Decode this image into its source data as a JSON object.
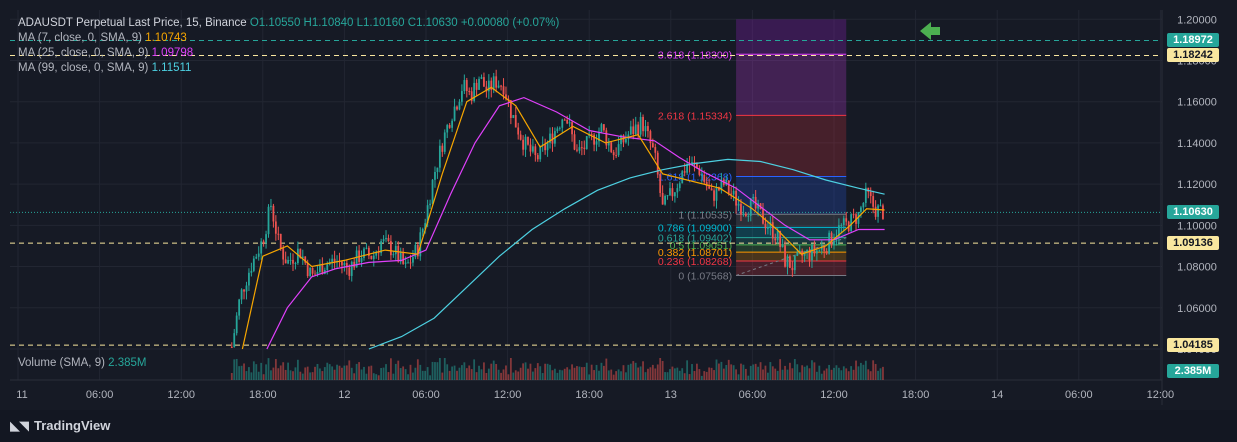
{
  "legend": {
    "title": "ADAUSDT Perpetual Last Price, 15, Binance",
    "ohlc": "O1.10550  H1.10840  L1.10160  C1.10630  +0.00080 (+0.07%)",
    "ma": [
      {
        "label": "MA (7, close, 0, SMA, 9)",
        "value": "1.10743",
        "color": "#f7a600"
      },
      {
        "label": "MA (25, close, 0, SMA, 9)",
        "value": "1.09798",
        "color": "#e040fb"
      },
      {
        "label": "MA (99, close, 0, SMA, 9)",
        "value": "1.11511",
        "color": "#4dd0e1"
      }
    ],
    "volume_label": "Volume (SMA, 9)",
    "volume_value": "2.385M"
  },
  "brand": {
    "name": "TradingView"
  },
  "price_tags": [
    {
      "text": "1.18972",
      "price": 1.18972,
      "bg": "#26a69a",
      "fg": "#ffffff"
    },
    {
      "text": "1.18242",
      "price": 1.18242,
      "bg": "#f9e79f",
      "fg": "#131722"
    },
    {
      "text": "1.10630",
      "price": 1.1063,
      "bg": "#26a69a",
      "fg": "#ffffff"
    },
    {
      "text": "1.09136",
      "price": 1.09136,
      "bg": "#f9e79f",
      "fg": "#131722"
    },
    {
      "text": "1.04185",
      "price": 1.04185,
      "bg": "#f9e79f",
      "fg": "#131722"
    }
  ],
  "volume_tag": {
    "text": "2.385M",
    "bg": "#26a69a",
    "fg": "#ffffff"
  },
  "colors": {
    "up": "#26a69a",
    "down": "#ef5350",
    "background": "#161a25",
    "grid": "#222632"
  },
  "chart_data": {
    "type": "candlestick",
    "symbol": "ADAUSDT Perpetual",
    "interval": "15",
    "exchange": "Binance",
    "y_axis": {
      "ticks": [
        "1.20000",
        "1.18000",
        "1.16000",
        "1.14000",
        "1.12000",
        "1.10000",
        "1.08000",
        "1.06000",
        "1.04000"
      ],
      "ylim": [
        1.0395,
        1.2045
      ]
    },
    "x_axis": {
      "ticks": [
        "11",
        "06:00",
        "12:00",
        "18:00",
        "12",
        "06:00",
        "12:00",
        "18:00",
        "13",
        "06:00",
        "12:00",
        "18:00",
        "14",
        "06:00",
        "12:00"
      ],
      "xlim": [
        0,
        14
      ]
    },
    "horizontal_lines": [
      {
        "price": 1.18972,
        "color": "#26a69a"
      },
      {
        "price": 1.18242,
        "color": "#f9e79f"
      },
      {
        "price": 1.09136,
        "color": "#f9e79f"
      },
      {
        "price": 1.04185,
        "color": "#f9e79f"
      }
    ],
    "last_price_line": {
      "price": 1.1063,
      "color": "#26a69a"
    },
    "fibonacci": {
      "range": [
        8.8,
        10.15
      ],
      "levels": [
        {
          "label": "3.618 (1.18300)",
          "price": 1.183,
          "color": "#e040fb"
        },
        {
          "label": "2.618 (1.15334)",
          "price": 1.15334,
          "color": "#f23645"
        },
        {
          "label": "1.618 (1.12368)",
          "price": 1.12368,
          "color": "#2962ff"
        },
        {
          "label": "1 (1.10535)",
          "price": 1.10535,
          "color": "#787b86"
        },
        {
          "label": "0.786 (1.09900)",
          "price": 1.099,
          "color": "#00bcd4"
        },
        {
          "label": "0.618 (1.09402)",
          "price": 1.09402,
          "color": "#26a69a"
        },
        {
          "label": "0.5 (1.09051)",
          "price": 1.09051,
          "color": "#4caf50"
        },
        {
          "label": "0.382 (1.08701)",
          "price": 1.08701,
          "color": "#ff9800"
        },
        {
          "label": "0.236 (1.08268)",
          "price": 1.08268,
          "color": "#f23645"
        },
        {
          "label": "0 (1.07568)",
          "price": 1.07568,
          "color": "#787b86"
        }
      ],
      "top_price": 1.2
    },
    "price_path": [
      [
        2.62,
        1.041
      ],
      [
        2.72,
        1.065
      ],
      [
        2.85,
        1.08
      ],
      [
        3.0,
        1.093
      ],
      [
        3.1,
        1.11
      ],
      [
        3.2,
        1.09
      ],
      [
        3.3,
        1.082
      ],
      [
        3.45,
        1.088
      ],
      [
        3.6,
        1.075
      ],
      [
        3.75,
        1.081
      ],
      [
        3.9,
        1.083
      ],
      [
        4.05,
        1.079
      ],
      [
        4.2,
        1.086
      ],
      [
        4.35,
        1.085
      ],
      [
        4.45,
        1.092
      ],
      [
        4.6,
        1.088
      ],
      [
        4.75,
        1.079
      ],
      [
        4.9,
        1.089
      ],
      [
        5.0,
        1.105
      ],
      [
        5.1,
        1.125
      ],
      [
        5.2,
        1.14
      ],
      [
        5.3,
        1.153
      ],
      [
        5.38,
        1.16
      ],
      [
        5.45,
        1.168
      ],
      [
        5.55,
        1.163
      ],
      [
        5.65,
        1.172
      ],
      [
        5.75,
        1.165
      ],
      [
        5.85,
        1.17
      ],
      [
        5.95,
        1.168
      ],
      [
        6.05,
        1.154
      ],
      [
        6.2,
        1.14
      ],
      [
        6.35,
        1.132
      ],
      [
        6.5,
        1.14
      ],
      [
        6.7,
        1.155
      ],
      [
        6.85,
        1.135
      ],
      [
        7.0,
        1.14
      ],
      [
        7.15,
        1.147
      ],
      [
        7.3,
        1.135
      ],
      [
        7.5,
        1.145
      ],
      [
        7.65,
        1.15
      ],
      [
        7.8,
        1.134
      ],
      [
        7.9,
        1.108
      ],
      [
        8.05,
        1.118
      ],
      [
        8.2,
        1.13
      ],
      [
        8.35,
        1.127
      ],
      [
        8.5,
        1.114
      ],
      [
        8.65,
        1.12
      ],
      [
        8.8,
        1.112
      ],
      [
        8.9,
        1.108
      ],
      [
        9.0,
        1.11
      ],
      [
        9.15,
        1.102
      ],
      [
        9.3,
        1.095
      ],
      [
        9.4,
        1.083
      ],
      [
        9.5,
        1.08
      ],
      [
        9.6,
        1.085
      ],
      [
        9.75,
        1.087
      ],
      [
        9.9,
        1.09
      ],
      [
        10.05,
        1.098
      ],
      [
        10.15,
        1.1
      ],
      [
        10.3,
        1.105
      ],
      [
        10.4,
        1.115
      ],
      [
        10.5,
        1.108
      ],
      [
        10.62,
        1.1063
      ]
    ],
    "ma_7": [
      [
        2.75,
        1.04
      ],
      [
        3.0,
        1.085
      ],
      [
        3.3,
        1.09
      ],
      [
        3.6,
        1.08
      ],
      [
        4.0,
        1.083
      ],
      [
        4.5,
        1.088
      ],
      [
        4.9,
        1.086
      ],
      [
        5.2,
        1.125
      ],
      [
        5.5,
        1.16
      ],
      [
        5.8,
        1.167
      ],
      [
        6.1,
        1.158
      ],
      [
        6.4,
        1.138
      ],
      [
        6.8,
        1.148
      ],
      [
        7.2,
        1.14
      ],
      [
        7.6,
        1.144
      ],
      [
        7.9,
        1.125
      ],
      [
        8.2,
        1.122
      ],
      [
        8.6,
        1.118
      ],
      [
        9.0,
        1.108
      ],
      [
        9.3,
        1.098
      ],
      [
        9.6,
        1.086
      ],
      [
        9.9,
        1.09
      ],
      [
        10.2,
        1.1
      ],
      [
        10.4,
        1.108
      ],
      [
        10.62,
        1.10743
      ]
    ],
    "ma_25": [
      [
        3.05,
        1.04
      ],
      [
        3.3,
        1.06
      ],
      [
        3.6,
        1.075
      ],
      [
        3.9,
        1.079
      ],
      [
        4.3,
        1.082
      ],
      [
        4.7,
        1.083
      ],
      [
        5.0,
        1.088
      ],
      [
        5.3,
        1.115
      ],
      [
        5.6,
        1.14
      ],
      [
        5.9,
        1.158
      ],
      [
        6.2,
        1.162
      ],
      [
        6.6,
        1.155
      ],
      [
        7.0,
        1.146
      ],
      [
        7.4,
        1.143
      ],
      [
        7.8,
        1.141
      ],
      [
        8.1,
        1.133
      ],
      [
        8.4,
        1.126
      ],
      [
        8.8,
        1.118
      ],
      [
        9.1,
        1.109
      ],
      [
        9.4,
        1.1
      ],
      [
        9.7,
        1.093
      ],
      [
        10.0,
        1.093
      ],
      [
        10.3,
        1.098
      ],
      [
        10.62,
        1.09798
      ]
    ],
    "ma_99": [
      [
        4.3,
        1.04
      ],
      [
        4.7,
        1.046
      ],
      [
        5.1,
        1.055
      ],
      [
        5.5,
        1.07
      ],
      [
        5.9,
        1.085
      ],
      [
        6.3,
        1.098
      ],
      [
        6.7,
        1.108
      ],
      [
        7.1,
        1.117
      ],
      [
        7.5,
        1.123
      ],
      [
        7.9,
        1.127
      ],
      [
        8.3,
        1.13
      ],
      [
        8.7,
        1.132
      ],
      [
        9.1,
        1.131
      ],
      [
        9.5,
        1.127
      ],
      [
        9.9,
        1.122
      ],
      [
        10.3,
        1.118
      ],
      [
        10.62,
        1.11511
      ]
    ],
    "volume": {
      "sma": "2.385M",
      "max_bars": 0.75
    }
  }
}
